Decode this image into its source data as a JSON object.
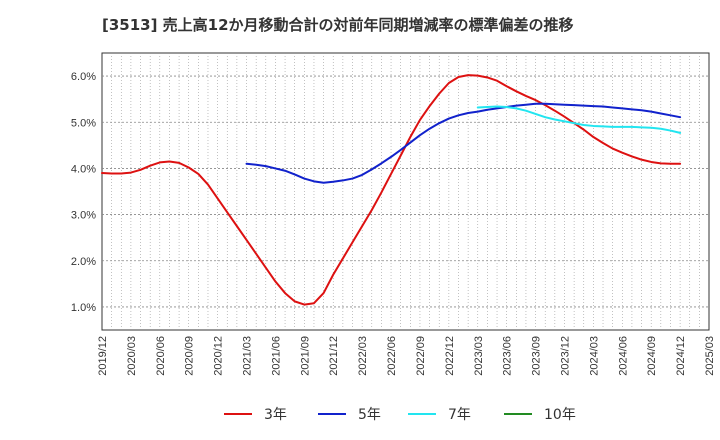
{
  "chart_data": {
    "type": "line",
    "title": "[3513]  売上高12か月移動合計の対前年同期増減率の標準偏差の推移",
    "xlabel": "",
    "ylabel": "",
    "ylim": [
      0.5,
      6.5
    ],
    "y_ticks": [
      "1.0%",
      "2.0%",
      "3.0%",
      "4.0%",
      "5.0%",
      "6.0%"
    ],
    "y_tick_values": [
      1.0,
      2.0,
      3.0,
      4.0,
      5.0,
      6.0
    ],
    "x_ticks": [
      "2019/12",
      "2020/03",
      "2020/06",
      "2020/09",
      "2020/12",
      "2021/03",
      "2021/06",
      "2021/09",
      "2021/12",
      "2022/03",
      "2022/06",
      "2022/09",
      "2022/12",
      "2023/03",
      "2023/06",
      "2023/09",
      "2023/12",
      "2024/03",
      "2024/06",
      "2024/09",
      "2024/12",
      "2025/03"
    ],
    "grid": true,
    "legend_position": "bottom",
    "series": [
      {
        "name": "3年",
        "color": "#dd1111",
        "points": [
          [
            "2019/12",
            3.9
          ],
          [
            "2020/01",
            3.89
          ],
          [
            "2020/02",
            3.89
          ],
          [
            "2020/03",
            3.91
          ],
          [
            "2020/04",
            3.97
          ],
          [
            "2020/05",
            4.06
          ],
          [
            "2020/06",
            4.13
          ],
          [
            "2020/07",
            4.15
          ],
          [
            "2020/08",
            4.12
          ],
          [
            "2020/09",
            4.02
          ],
          [
            "2020/10",
            3.88
          ],
          [
            "2020/11",
            3.65
          ],
          [
            "2020/12",
            3.35
          ],
          [
            "2021/01",
            3.05
          ],
          [
            "2021/02",
            2.75
          ],
          [
            "2021/03",
            2.45
          ],
          [
            "2021/04",
            2.15
          ],
          [
            "2021/05",
            1.85
          ],
          [
            "2021/06",
            1.55
          ],
          [
            "2021/07",
            1.3
          ],
          [
            "2021/08",
            1.12
          ],
          [
            "2021/09",
            1.05
          ],
          [
            "2021/10",
            1.08
          ],
          [
            "2021/11",
            1.3
          ],
          [
            "2021/12",
            1.7
          ],
          [
            "2022/01",
            2.05
          ],
          [
            "2022/02",
            2.4
          ],
          [
            "2022/03",
            2.75
          ],
          [
            "2022/04",
            3.1
          ],
          [
            "2022/05",
            3.48
          ],
          [
            "2022/06",
            3.88
          ],
          [
            "2022/07",
            4.28
          ],
          [
            "2022/08",
            4.68
          ],
          [
            "2022/09",
            5.05
          ],
          [
            "2022/10",
            5.35
          ],
          [
            "2022/11",
            5.62
          ],
          [
            "2022/12",
            5.85
          ],
          [
            "2023/01",
            5.98
          ],
          [
            "2023/02",
            6.02
          ],
          [
            "2023/03",
            6.01
          ],
          [
            "2023/04",
            5.97
          ],
          [
            "2023/05",
            5.9
          ],
          [
            "2023/06",
            5.78
          ],
          [
            "2023/07",
            5.67
          ],
          [
            "2023/08",
            5.57
          ],
          [
            "2023/09",
            5.48
          ],
          [
            "2023/10",
            5.37
          ],
          [
            "2023/11",
            5.25
          ],
          [
            "2023/12",
            5.12
          ],
          [
            "2024/01",
            4.98
          ],
          [
            "2024/02",
            4.84
          ],
          [
            "2024/03",
            4.68
          ],
          [
            "2024/04",
            4.55
          ],
          [
            "2024/05",
            4.43
          ],
          [
            "2024/06",
            4.34
          ],
          [
            "2024/07",
            4.26
          ],
          [
            "2024/08",
            4.19
          ],
          [
            "2024/09",
            4.14
          ],
          [
            "2024/10",
            4.11
          ],
          [
            "2024/11",
            4.1
          ],
          [
            "2024/12",
            4.1
          ]
        ]
      },
      {
        "name": "5年",
        "color": "#1122cc",
        "points": [
          [
            "2021/03",
            4.1
          ],
          [
            "2021/04",
            4.08
          ],
          [
            "2021/05",
            4.05
          ],
          [
            "2021/06",
            4.0
          ],
          [
            "2021/07",
            3.95
          ],
          [
            "2021/08",
            3.87
          ],
          [
            "2021/09",
            3.78
          ],
          [
            "2021/10",
            3.72
          ],
          [
            "2021/11",
            3.69
          ],
          [
            "2021/12",
            3.71
          ],
          [
            "2022/01",
            3.74
          ],
          [
            "2022/02",
            3.78
          ],
          [
            "2022/03",
            3.86
          ],
          [
            "2022/04",
            3.98
          ],
          [
            "2022/05",
            4.11
          ],
          [
            "2022/06",
            4.25
          ],
          [
            "2022/07",
            4.4
          ],
          [
            "2022/08",
            4.56
          ],
          [
            "2022/09",
            4.72
          ],
          [
            "2022/10",
            4.86
          ],
          [
            "2022/11",
            4.98
          ],
          [
            "2022/12",
            5.08
          ],
          [
            "2023/01",
            5.15
          ],
          [
            "2023/02",
            5.2
          ],
          [
            "2023/03",
            5.23
          ],
          [
            "2023/04",
            5.27
          ],
          [
            "2023/05",
            5.3
          ],
          [
            "2023/06",
            5.33
          ],
          [
            "2023/07",
            5.36
          ],
          [
            "2023/08",
            5.38
          ],
          [
            "2023/09",
            5.4
          ],
          [
            "2023/10",
            5.4
          ],
          [
            "2023/11",
            5.39
          ],
          [
            "2023/12",
            5.38
          ],
          [
            "2024/01",
            5.37
          ],
          [
            "2024/02",
            5.36
          ],
          [
            "2024/03",
            5.35
          ],
          [
            "2024/04",
            5.34
          ],
          [
            "2024/05",
            5.32
          ],
          [
            "2024/06",
            5.3
          ],
          [
            "2024/07",
            5.28
          ],
          [
            "2024/08",
            5.26
          ],
          [
            "2024/09",
            5.23
          ],
          [
            "2024/10",
            5.19
          ],
          [
            "2024/11",
            5.15
          ],
          [
            "2024/12",
            5.11
          ]
        ]
      },
      {
        "name": "7年",
        "color": "#22e5f0",
        "points": [
          [
            "2023/03",
            5.32
          ],
          [
            "2023/04",
            5.33
          ],
          [
            "2023/05",
            5.34
          ],
          [
            "2023/06",
            5.33
          ],
          [
            "2023/07",
            5.3
          ],
          [
            "2023/08",
            5.25
          ],
          [
            "2023/09",
            5.18
          ],
          [
            "2023/10",
            5.11
          ],
          [
            "2023/11",
            5.06
          ],
          [
            "2023/12",
            5.02
          ],
          [
            "2024/01",
            4.98
          ],
          [
            "2024/02",
            4.94
          ],
          [
            "2024/03",
            4.92
          ],
          [
            "2024/04",
            4.91
          ],
          [
            "2024/05",
            4.9
          ],
          [
            "2024/06",
            4.9
          ],
          [
            "2024/07",
            4.9
          ],
          [
            "2024/08",
            4.89
          ],
          [
            "2024/09",
            4.88
          ],
          [
            "2024/10",
            4.86
          ],
          [
            "2024/11",
            4.82
          ],
          [
            "2024/12",
            4.77
          ]
        ]
      },
      {
        "name": "10年",
        "color": "#228b22",
        "points": []
      }
    ]
  }
}
